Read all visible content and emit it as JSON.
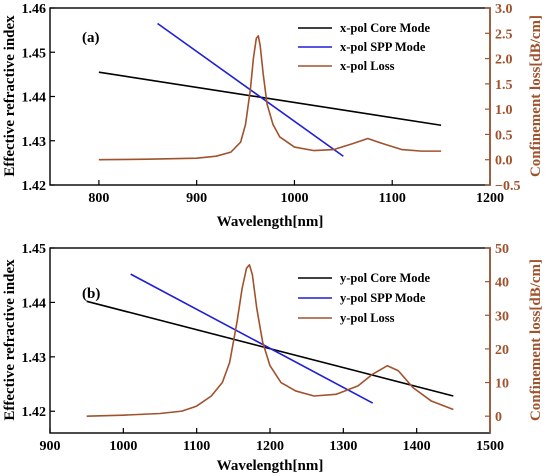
{
  "chart_data": [
    {
      "type": "line",
      "panel_label": "(a)",
      "xlabel": "Wavelength[nm]",
      "ylabel_left": "Effective refractive index",
      "ylabel_right": "Confinement loss[dB/cm]",
      "xlim": [
        750,
        1200
      ],
      "ylim_left": [
        1.42,
        1.46
      ],
      "ylim_right": [
        -0.5,
        3.0
      ],
      "x_ticks": [
        "800",
        "900",
        "1000",
        "1100",
        "1200"
      ],
      "y_ticks_left": [
        "1.42",
        "1.43",
        "1.44",
        "1.45",
        "1.46"
      ],
      "y_ticks_right": [
        "−0.5",
        "0.0",
        "0.5",
        "1.0",
        "1.5",
        "2.0",
        "2.5",
        "3.0"
      ],
      "legend_position": "top-right",
      "series": [
        {
          "name": "x-pol Core Mode",
          "axis": "left",
          "color": "#000000",
          "x": [
            800,
            1150
          ],
          "y": [
            1.4455,
            1.4335
          ]
        },
        {
          "name": "x-pol SPP Mode",
          "axis": "left",
          "color": "#1f1fd6",
          "x": [
            860,
            1050
          ],
          "y": [
            1.4565,
            1.4265
          ]
        },
        {
          "name": "x-pol Loss",
          "axis": "right",
          "color": "#a0522d",
          "x": [
            800,
            850,
            900,
            920,
            935,
            945,
            950,
            955,
            958,
            961,
            963,
            965,
            968,
            972,
            978,
            985,
            1000,
            1020,
            1040,
            1060,
            1075,
            1090,
            1110,
            1130,
            1150
          ],
          "y": [
            0.0,
            0.01,
            0.03,
            0.07,
            0.15,
            0.35,
            0.7,
            1.4,
            2.0,
            2.4,
            2.45,
            2.25,
            1.7,
            1.1,
            0.7,
            0.45,
            0.25,
            0.18,
            0.2,
            0.32,
            0.42,
            0.32,
            0.2,
            0.17,
            0.17
          ]
        }
      ]
    },
    {
      "type": "line",
      "panel_label": "(b)",
      "xlabel": "Wavelength[nm]",
      "ylabel_left": "Effective refractive index",
      "ylabel_right": "Confinement loss[dB/cm]",
      "xlim": [
        900,
        1500
      ],
      "ylim_left": [
        1.416,
        1.45
      ],
      "ylim_right": [
        -5,
        50
      ],
      "x_ticks": [
        "900",
        "1000",
        "1100",
        "1200",
        "1300",
        "1400",
        "1500"
      ],
      "y_ticks_left": [
        "1.42",
        "1.43",
        "1.44",
        "1.45"
      ],
      "y_ticks_right": [
        "0",
        "10",
        "20",
        "30",
        "40",
        "50"
      ],
      "legend_position": "top-right",
      "series": [
        {
          "name": "y-pol Core Mode",
          "axis": "left",
          "color": "#000000",
          "x": [
            950,
            1450
          ],
          "y": [
            1.4402,
            1.4228
          ]
        },
        {
          "name": "y-pol SPP Mode",
          "axis": "left",
          "color": "#1f1fd6",
          "x": [
            1010,
            1340
          ],
          "y": [
            1.4452,
            1.4215
          ]
        },
        {
          "name": "y-pol Loss",
          "axis": "right",
          "color": "#a0522d",
          "x": [
            950,
            1000,
            1050,
            1080,
            1100,
            1120,
            1135,
            1145,
            1155,
            1162,
            1168,
            1172,
            1176,
            1182,
            1190,
            1200,
            1215,
            1235,
            1260,
            1290,
            1320,
            1340,
            1360,
            1375,
            1395,
            1420,
            1450
          ],
          "y": [
            0,
            0.3,
            0.8,
            1.5,
            3,
            6,
            10,
            16,
            28,
            38,
            44,
            45,
            42,
            32,
            22,
            15,
            10,
            7.5,
            6,
            6.5,
            9,
            12.5,
            15,
            13.5,
            8.5,
            4.5,
            2
          ]
        }
      ]
    }
  ]
}
